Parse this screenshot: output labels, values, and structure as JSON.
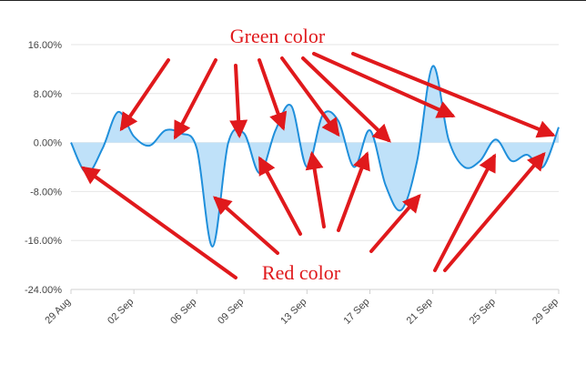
{
  "chart_data": {
    "type": "area",
    "title": "",
    "xlabel": "",
    "ylabel": "",
    "ylim": [
      -24,
      16
    ],
    "yticks": [
      16,
      8,
      0,
      -8,
      -16,
      -24
    ],
    "ytick_labels": [
      "16.00%",
      "8.00%",
      "0.00%",
      "-8.00%",
      "-16.00%",
      "-24.00%"
    ],
    "xticks": [
      {
        "x": 0,
        "label": "29 Aug"
      },
      {
        "x": 4,
        "label": "02 Sep"
      },
      {
        "x": 8,
        "label": "06 Sep"
      },
      {
        "x": 11,
        "label": "09 Sep"
      },
      {
        "x": 15,
        "label": "13 Sep"
      },
      {
        "x": 19,
        "label": "17 Sep"
      },
      {
        "x": 23,
        "label": "21 Sep"
      },
      {
        "x": 27,
        "label": "25 Sep"
      },
      {
        "x": 31,
        "label": "29 Sep"
      }
    ],
    "x": [
      0,
      1,
      2,
      3,
      4,
      5,
      6,
      7,
      8,
      9,
      10,
      11,
      12,
      13,
      14,
      15,
      16,
      17,
      18,
      19,
      20,
      21,
      22,
      23,
      24,
      25,
      26,
      27,
      28,
      29,
      30,
      31
    ],
    "values": [
      0,
      -5,
      -1,
      5,
      1,
      -0.5,
      2,
      1.5,
      -1,
      -17,
      0,
      1.5,
      -5,
      2,
      6,
      -4,
      4.5,
      3.5,
      -4,
      2,
      -7,
      -11,
      -3,
      12.5,
      0.5,
      -4,
      -3,
      0.5,
      -3,
      -2,
      -4,
      2.5
    ],
    "grid": true,
    "line_color": "#1f8fdb",
    "fill_color": "#bfe1f9",
    "annotations": [
      {
        "text": "Green color",
        "color": "#e0191c"
      },
      {
        "text": "Red color",
        "color": "#e0191c"
      }
    ]
  }
}
